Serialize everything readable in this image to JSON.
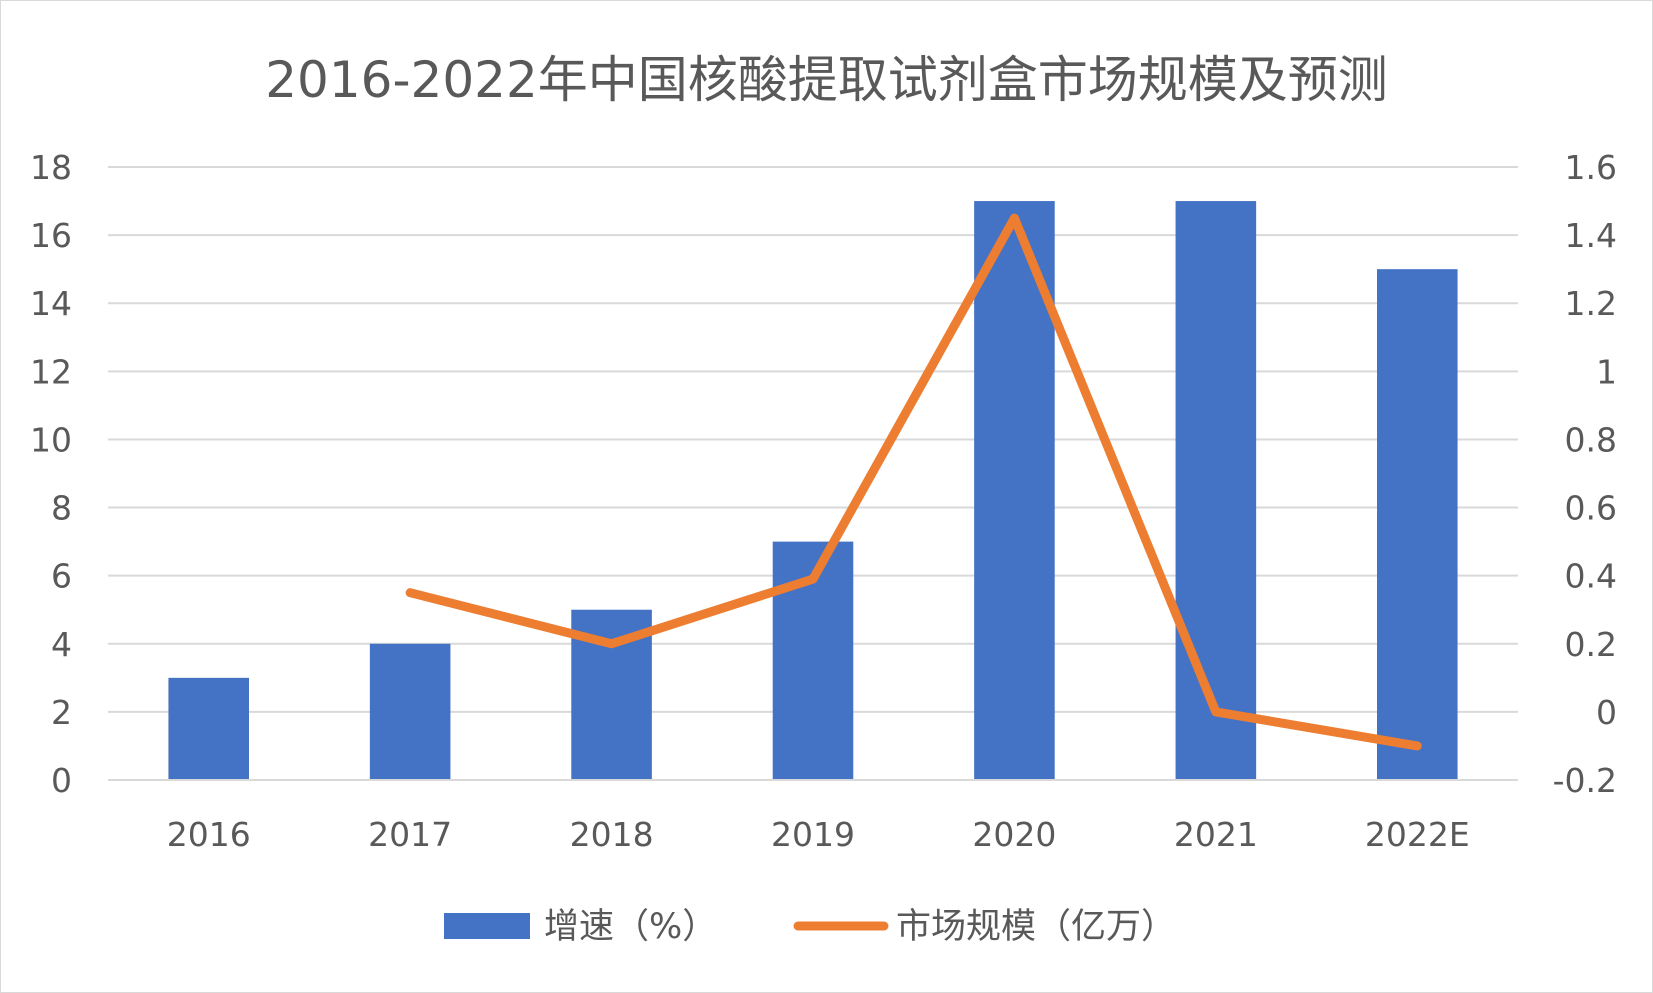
{
  "chart_data": {
    "type": "bar+line",
    "title": "2016-2022年中国核酸提取试剂盒市场规模及预测",
    "categories": [
      "2016",
      "2017",
      "2018",
      "2019",
      "2020",
      "2021",
      "2022E"
    ],
    "series": [
      {
        "name": "增速（%）",
        "type": "bar",
        "axis": "left",
        "color": "#4472C4",
        "values": [
          3,
          4,
          5,
          7,
          17,
          17,
          15
        ]
      },
      {
        "name": "市场规模（亿万）",
        "type": "line",
        "axis": "right",
        "color": "#ED7D31",
        "values": [
          null,
          0.35,
          0.2,
          0.39,
          1.45,
          0,
          -0.1
        ]
      }
    ],
    "y_left": {
      "min": 0,
      "max": 18,
      "ticks": [
        0,
        2,
        4,
        6,
        8,
        10,
        12,
        14,
        16,
        18
      ],
      "tick_labels": [
        "0",
        "2",
        "4",
        "6",
        "8",
        "10",
        "12",
        "14",
        "16",
        "18"
      ]
    },
    "y_right": {
      "min": -0.2,
      "max": 1.6,
      "ticks": [
        -0.2,
        0,
        0.2,
        0.4,
        0.6,
        0.8,
        1,
        1.2,
        1.4,
        1.6
      ],
      "tick_labels": [
        "-0.2",
        "0",
        "0.2",
        "0.4",
        "0.6",
        "0.8",
        "1",
        "1.2",
        "1.4",
        "1.6"
      ]
    },
    "grid": true,
    "gridline_color": "#d9d9d9",
    "legend_position": "bottom"
  }
}
